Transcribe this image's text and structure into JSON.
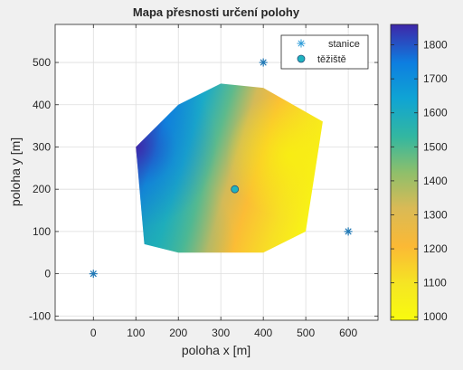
{
  "chart_data": {
    "type": "heatmap",
    "title": "Mapa přesnosti určení polohy",
    "xlabel": "poloha x [m]",
    "ylabel": "poloha y [m]",
    "xlim": [
      -90,
      670
    ],
    "ylim": [
      -110,
      590
    ],
    "xticks": [
      0,
      100,
      200,
      300,
      400,
      500,
      600
    ],
    "yticks": [
      -100,
      0,
      100,
      200,
      300,
      400,
      500
    ],
    "grid": true,
    "legend_position": "top-right",
    "colormap": "parula",
    "colorbar": {
      "min": 990,
      "max": 1860,
      "ticks": [
        1000,
        1100,
        1200,
        1300,
        1400,
        1500,
        1600,
        1700,
        1800
      ]
    },
    "region_polygon": [
      [
        100,
        300
      ],
      [
        200,
        400
      ],
      [
        300,
        450
      ],
      [
        400,
        440
      ],
      [
        540,
        360
      ],
      [
        500,
        100
      ],
      [
        400,
        50
      ],
      [
        200,
        50
      ],
      [
        120,
        70
      ]
    ],
    "surface_samples": [
      {
        "x": 100,
        "y": 300,
        "value": 1850
      },
      {
        "x": 160,
        "y": 180,
        "value": 1500
      },
      {
        "x": 200,
        "y": 100,
        "value": 1420
      },
      {
        "x": 220,
        "y": 330,
        "value": 1420
      },
      {
        "x": 330,
        "y": 200,
        "value": 1120
      },
      {
        "x": 450,
        "y": 280,
        "value": 1000
      },
      {
        "x": 500,
        "y": 200,
        "value": 1010
      }
    ],
    "series": [
      {
        "name": "stanice",
        "marker": "asterisk",
        "color": "#1f77b4",
        "points": [
          [
            0,
            0
          ],
          [
            400,
            500
          ],
          [
            600,
            100
          ]
        ]
      },
      {
        "name": "těžiště",
        "marker": "circle",
        "color": "#1fb3c0",
        "points": [
          [
            333,
            200
          ]
        ]
      }
    ]
  }
}
